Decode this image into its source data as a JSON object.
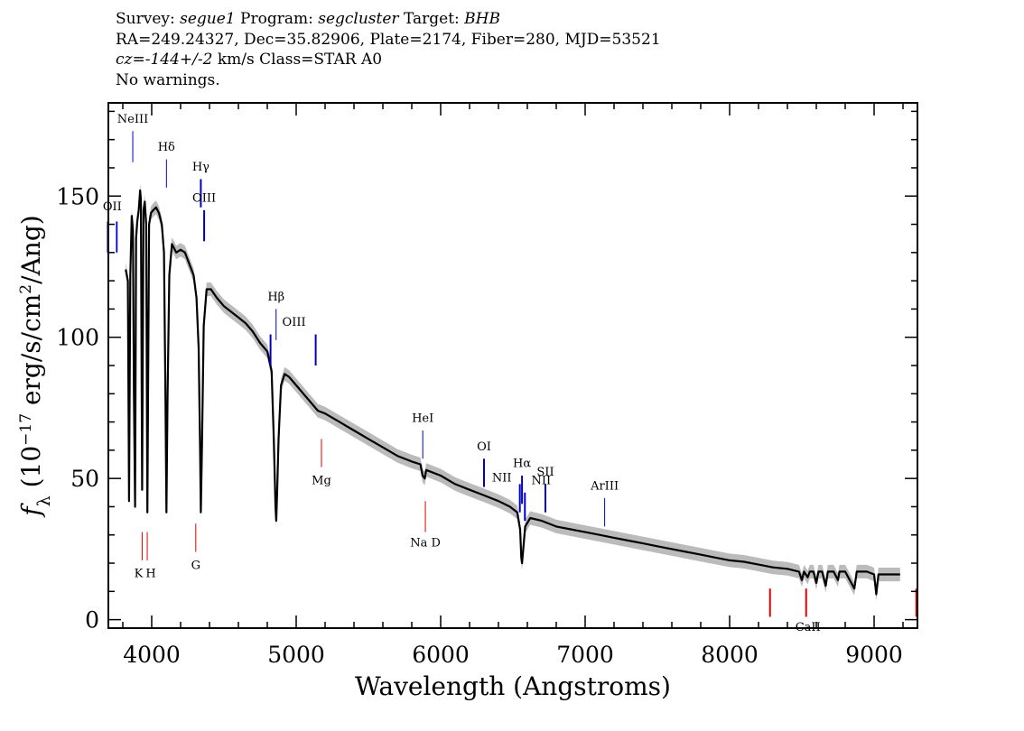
{
  "header": {
    "line1": {
      "survey_label": "Survey: ",
      "survey": "segue1",
      "program_label": " Program: ",
      "program": "segcluster",
      "target_label": " Target: ",
      "target": "BHB"
    },
    "line2": "RA=249.24327, Dec=35.82906, Plate=2174, Fiber=280, MJD=53521",
    "line3": {
      "cz": "cz=-144+/-2",
      "rest": " km/s Class=STAR A0"
    },
    "line4": "No warnings."
  },
  "chart_data": {
    "type": "line",
    "xlabel": "Wavelength (Angstroms)",
    "ylabel": "f_λ (10^-17 erg/s/cm^2/Ang)",
    "xlim": [
      3700,
      9300
    ],
    "ylim": [
      -3,
      183
    ],
    "x_ticks": [
      4000,
      5000,
      6000,
      7000,
      8000,
      9000
    ],
    "y_ticks": [
      0,
      50,
      100,
      150
    ],
    "colors": {
      "spectrum": "#000000",
      "error_band": "#bbbbbb",
      "emission": "#0000cc",
      "absorption": "#dd0000"
    },
    "series": [
      {
        "values": [
          [
            3820,
            124
          ],
          [
            3835,
            120
          ],
          [
            3843,
            42
          ],
          [
            3852,
            122
          ],
          [
            3862,
            143
          ],
          [
            3870,
            138
          ],
          [
            3877,
            80
          ],
          [
            3885,
            40
          ],
          [
            3892,
            135
          ],
          [
            3900,
            141
          ],
          [
            3910,
            145
          ],
          [
            3920,
            152
          ],
          [
            3925,
            149
          ],
          [
            3934,
            46
          ],
          [
            3943,
            145
          ],
          [
            3952,
            148
          ],
          [
            3962,
            140
          ],
          [
            3970,
            38
          ],
          [
            3982,
            140
          ],
          [
            3995,
            144
          ],
          [
            4010,
            145
          ],
          [
            4030,
            146
          ],
          [
            4050,
            144
          ],
          [
            4070,
            140
          ],
          [
            4085,
            130
          ],
          [
            4095,
            80
          ],
          [
            4102,
            38
          ],
          [
            4110,
            80
          ],
          [
            4122,
            122
          ],
          [
            4140,
            133
          ],
          [
            4170,
            130
          ],
          [
            4200,
            131
          ],
          [
            4230,
            130
          ],
          [
            4260,
            126
          ],
          [
            4290,
            122
          ],
          [
            4310,
            114
          ],
          [
            4325,
            96
          ],
          [
            4335,
            60
          ],
          [
            4340,
            38
          ],
          [
            4348,
            62
          ],
          [
            4360,
            104
          ],
          [
            4380,
            117
          ],
          [
            4410,
            117
          ],
          [
            4450,
            114
          ],
          [
            4500,
            111
          ],
          [
            4550,
            109
          ],
          [
            4600,
            107
          ],
          [
            4650,
            105
          ],
          [
            4700,
            102
          ],
          [
            4750,
            98
          ],
          [
            4800,
            95
          ],
          [
            4830,
            88
          ],
          [
            4845,
            64
          ],
          [
            4857,
            40
          ],
          [
            4862,
            35
          ],
          [
            4868,
            45
          ],
          [
            4878,
            64
          ],
          [
            4895,
            83
          ],
          [
            4920,
            87
          ],
          [
            4950,
            86
          ],
          [
            5000,
            83
          ],
          [
            5050,
            80
          ],
          [
            5100,
            77
          ],
          [
            5150,
            74
          ],
          [
            5200,
            73
          ],
          [
            5300,
            70
          ],
          [
            5400,
            67
          ],
          [
            5500,
            64
          ],
          [
            5600,
            61
          ],
          [
            5700,
            58
          ],
          [
            5800,
            56
          ],
          [
            5860,
            55
          ],
          [
            5875,
            51
          ],
          [
            5890,
            50
          ],
          [
            5900,
            53
          ],
          [
            6000,
            51
          ],
          [
            6100,
            48
          ],
          [
            6200,
            46
          ],
          [
            6300,
            44
          ],
          [
            6400,
            42
          ],
          [
            6480,
            40
          ],
          [
            6530,
            38
          ],
          [
            6550,
            32
          ],
          [
            6558,
            22
          ],
          [
            6563,
            20
          ],
          [
            6570,
            24
          ],
          [
            6585,
            33
          ],
          [
            6620,
            36
          ],
          [
            6700,
            35
          ],
          [
            6800,
            33
          ],
          [
            6900,
            32
          ],
          [
            7000,
            31
          ],
          [
            7100,
            30
          ],
          [
            7200,
            29
          ],
          [
            7300,
            28
          ],
          [
            7400,
            27
          ],
          [
            7500,
            26
          ],
          [
            7600,
            25
          ],
          [
            7700,
            24
          ],
          [
            7800,
            23
          ],
          [
            7900,
            22
          ],
          [
            8000,
            21
          ],
          [
            8100,
            20.5
          ],
          [
            8200,
            19.5
          ],
          [
            8300,
            18.5
          ],
          [
            8400,
            18
          ],
          [
            8480,
            17
          ],
          [
            8500,
            14
          ],
          [
            8515,
            17
          ],
          [
            8540,
            15
          ],
          [
            8555,
            17
          ],
          [
            8580,
            17
          ],
          [
            8600,
            13
          ],
          [
            8615,
            17
          ],
          [
            8640,
            17
          ],
          [
            8665,
            12
          ],
          [
            8680,
            17
          ],
          [
            8720,
            17
          ],
          [
            8750,
            14
          ],
          [
            8760,
            17
          ],
          [
            8800,
            17
          ],
          [
            8863,
            11
          ],
          [
            8880,
            17
          ],
          [
            8950,
            17
          ],
          [
            9000,
            16
          ],
          [
            9015,
            9
          ],
          [
            9030,
            16
          ],
          [
            9100,
            16
          ],
          [
            9150,
            16
          ],
          [
            9180,
            16
          ]
        ]
      }
    ],
    "line_markers": [
      {
        "label": "OII",
        "x": 3727,
        "type": "emission",
        "y0": 130,
        "y1": 141,
        "label_y": 145,
        "ticks": [
          -5,
          5
        ],
        "w": 1.8
      },
      {
        "label": "NeIII",
        "x": 3869,
        "type": "emission",
        "y0": 162,
        "y1": 173,
        "label_y": 176,
        "ticks": [
          0
        ],
        "w": 1
      },
      {
        "label": "Hδ",
        "x": 4102,
        "type": "emission",
        "y0": 153,
        "y1": 163,
        "label_y": 166,
        "ticks": [
          0
        ],
        "w": 1
      },
      {
        "label": "Hγ",
        "x": 4340,
        "type": "emission",
        "y0": 146,
        "y1": 156,
        "label_y": 159,
        "ticks": [
          0
        ],
        "w": 2
      },
      {
        "label": "OIII",
        "x": 4363,
        "type": "emission",
        "y0": 134,
        "y1": 145,
        "label_y": 148,
        "ticks": [
          0
        ],
        "w": 2
      },
      {
        "label": "Hβ",
        "x": 4861,
        "type": "emission",
        "y0": 99,
        "y1": 110,
        "label_y": 113,
        "ticks": [
          0
        ],
        "w": 1
      },
      {
        "label": "OIII",
        "x": 4985,
        "type": "emission",
        "y0": 90,
        "y1": 101,
        "label_y": 104,
        "ticks": [
          -26,
          24
        ],
        "w": 2
      },
      {
        "label": "HeI",
        "x": 5876,
        "type": "emission",
        "y0": 57,
        "y1": 67,
        "label_y": 70,
        "ticks": [
          0
        ],
        "w": 1
      },
      {
        "label": "OI",
        "x": 6300,
        "type": "emission",
        "y0": 47,
        "y1": 57,
        "label_y": 60,
        "ticks": [
          0
        ],
        "w": 2
      },
      {
        "label": "NII",
        "x": 6548,
        "type": "emission",
        "y0": 38,
        "y1": 48,
        "label_y": 49,
        "ticks": [
          0
        ],
        "w": 2,
        "label_dx": -20
      },
      {
        "label": "Hα",
        "x": 6563,
        "type": "emission",
        "y0": 41,
        "y1": 51,
        "label_y": 54,
        "ticks": [
          0
        ],
        "w": 2
      },
      {
        "label": "NII",
        "x": 6583,
        "type": "emission",
        "y0": 35,
        "y1": 45,
        "label_y": 48,
        "ticks": [
          0
        ],
        "w": 2,
        "label_dx": 18
      },
      {
        "label": "SII",
        "x": 6725,
        "type": "emission",
        "y0": 38,
        "y1": 48,
        "label_y": 51,
        "ticks": [
          0
        ],
        "w": 2
      },
      {
        "label": "ArIII",
        "x": 7135,
        "type": "emission",
        "y0": 33,
        "y1": 43,
        "label_y": 46,
        "ticks": [
          0
        ],
        "w": 1
      },
      {
        "label": "Mg",
        "x": 5175,
        "type": "absorption",
        "y0": 54,
        "y1": 64,
        "label_y": 48,
        "ticks": [
          0
        ],
        "w": 1
      },
      {
        "label": "Na D",
        "x": 5894,
        "type": "absorption",
        "y0": 31,
        "y1": 42,
        "label_y": 26,
        "ticks": [
          0
        ],
        "w": 1
      },
      {
        "label": "K",
        "x": 3934,
        "type": "absorption",
        "y0": 21,
        "y1": 31,
        "label_y": 15,
        "ticks": [
          0
        ],
        "w": 1,
        "label_dx": -4
      },
      {
        "label": "H",
        "x": 3969,
        "type": "absorption",
        "y0": 21,
        "y1": 31,
        "label_y": 15,
        "ticks": [
          0
        ],
        "w": 1,
        "label_dx": 4
      },
      {
        "label": "G",
        "x": 4305,
        "type": "absorption",
        "y0": 24,
        "y1": 34,
        "label_y": 18,
        "ticks": [
          0
        ],
        "w": 1
      },
      {
        "label": "CaII",
        "x": 8542,
        "type": "absorption",
        "y0": 1,
        "y1": 11,
        "label_y": -4,
        "ticks": [
          -42,
          -2,
          120
        ],
        "w": 2
      }
    ]
  }
}
